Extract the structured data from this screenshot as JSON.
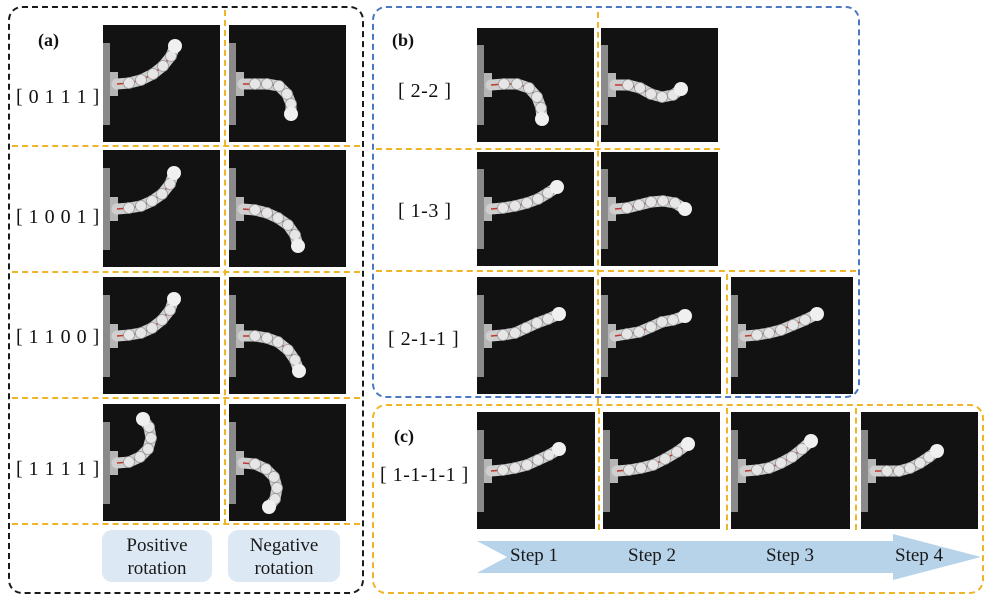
{
  "panels": {
    "a": "(a)",
    "b": "(b)",
    "c": "(c)"
  },
  "panel_a": {
    "rows": [
      "[ 0 1 1 1 ]",
      "[ 1 0 0 1 ]",
      "[ 1 1 0 0 ]",
      "[ 1 1 1 1 ]"
    ],
    "columns": [
      "Positive rotation",
      "Negative rotation"
    ]
  },
  "panel_b": {
    "rows": [
      "[ 2-2 ]",
      "[ 1-3 ]",
      "[ 2-1-1 ]"
    ]
  },
  "panel_c": {
    "row": "[ 1-1-1-1 ]",
    "steps": [
      "Step 1",
      "Step 2",
      "Step 3",
      "Step 4"
    ]
  },
  "colors": {
    "panel_a_border": "#1a1a1a",
    "panel_b_border": "#4a78c2",
    "panel_c_border": "#f0b429",
    "separator": "#f0b429",
    "label_box": "#dce9f5",
    "arrow": "#b7d3ea",
    "photo_bg": "#121212"
  }
}
